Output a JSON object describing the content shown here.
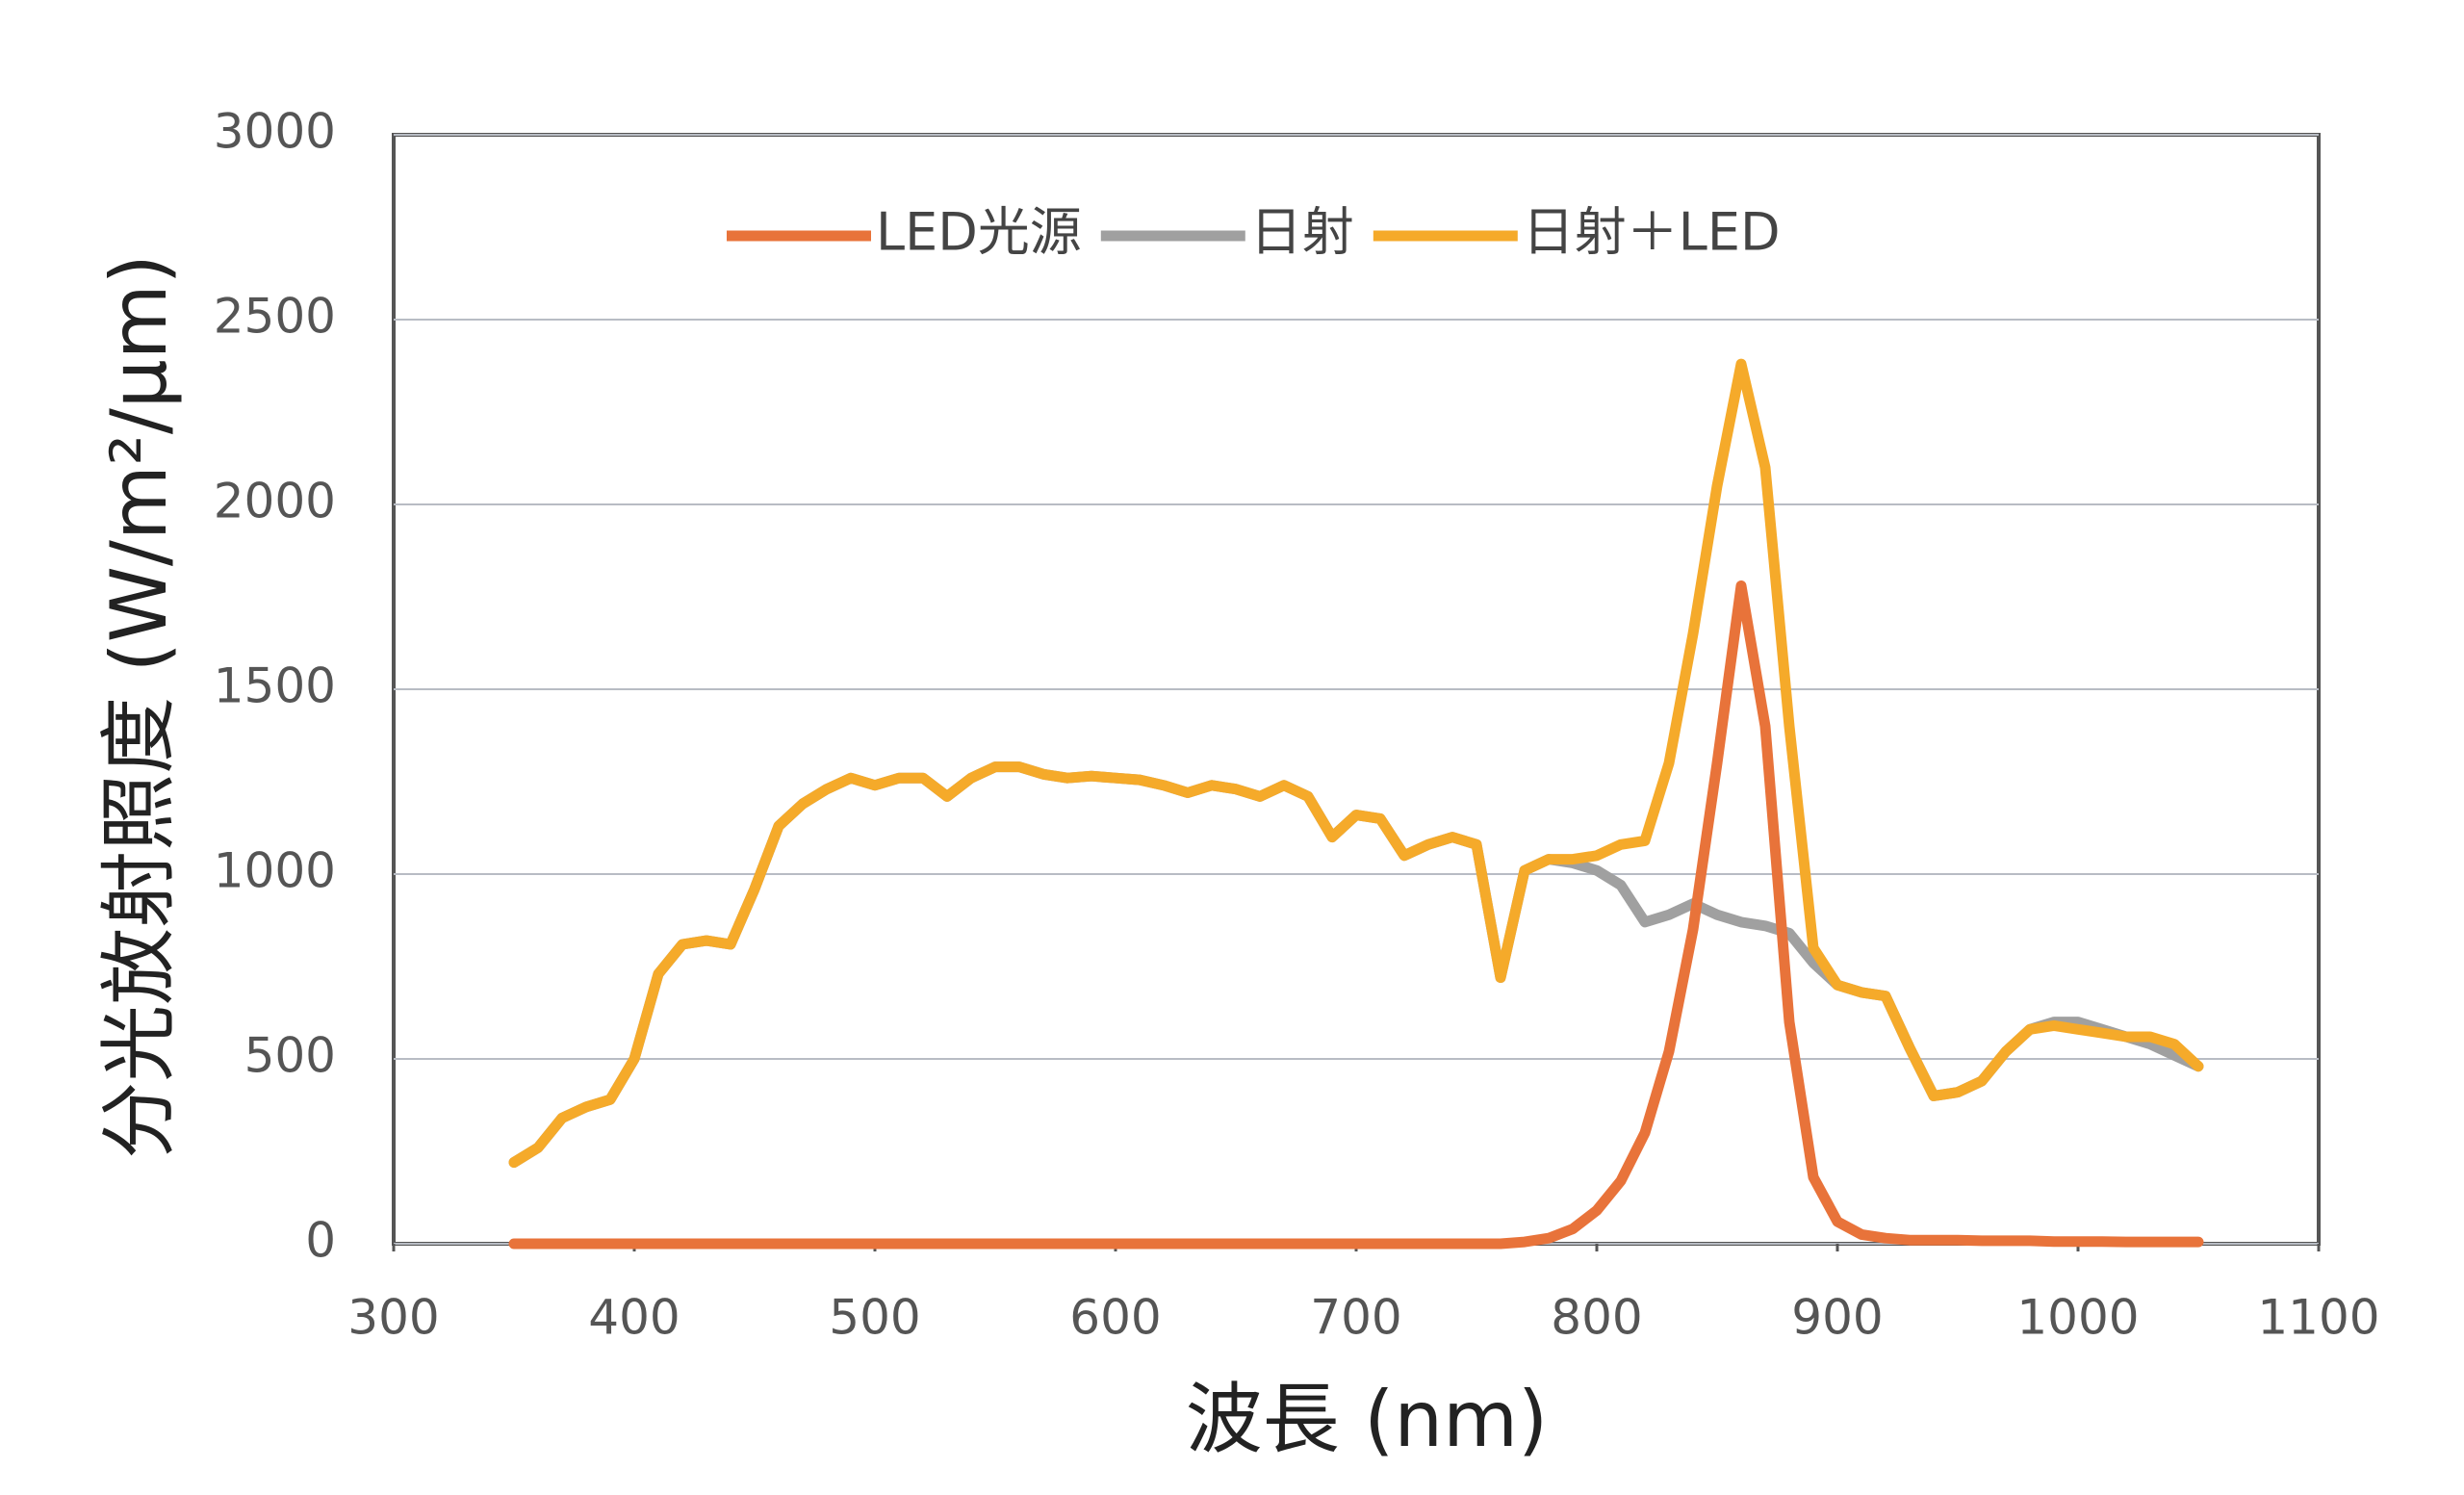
{
  "chart_data": {
    "type": "line",
    "xlabel": "波長 (nm)",
    "ylabel": "分光放射照度 (W/m²/μm)",
    "x": [
      350,
      360,
      370,
      380,
      390,
      400,
      410,
      420,
      430,
      440,
      450,
      460,
      470,
      480,
      490,
      500,
      510,
      520,
      530,
      540,
      550,
      560,
      570,
      580,
      590,
      600,
      610,
      620,
      630,
      640,
      650,
      660,
      670,
      680,
      690,
      700,
      710,
      720,
      730,
      740,
      750,
      760,
      770,
      780,
      790,
      800,
      810,
      820,
      830,
      840,
      850,
      860,
      870,
      880,
      890,
      900,
      910,
      920,
      930,
      940,
      950,
      960,
      970,
      980,
      990,
      1000,
      1010,
      1020,
      1030,
      1040,
      1050
    ],
    "series": [
      {
        "name": "LED光源",
        "color": "#e8733a",
        "values": [
          0,
          0,
          0,
          0,
          0,
          0,
          0,
          0,
          0,
          0,
          0,
          0,
          0,
          0,
          0,
          0,
          0,
          0,
          0,
          0,
          0,
          0,
          0,
          0,
          0,
          0,
          0,
          0,
          0,
          0,
          0,
          0,
          0,
          0,
          0,
          0,
          0,
          0,
          0,
          0,
          0,
          0,
          5,
          15,
          40,
          90,
          170,
          300,
          520,
          850,
          1300,
          1780,
          1400,
          600,
          180,
          60,
          25,
          15,
          10,
          10,
          10,
          8,
          8,
          8,
          6,
          6,
          6,
          5,
          5,
          5,
          5
        ]
      },
      {
        "name": "日射",
        "color": "#a0a0a0",
        "values": [
          220,
          260,
          340,
          370,
          390,
          500,
          730,
          810,
          820,
          810,
          960,
          1130,
          1190,
          1230,
          1260,
          1240,
          1260,
          1260,
          1210,
          1260,
          1290,
          1290,
          1270,
          1260,
          1265,
          1260,
          1255,
          1240,
          1220,
          1240,
          1230,
          1210,
          1240,
          1210,
          1100,
          1160,
          1150,
          1050,
          1080,
          1100,
          1080,
          720,
          1010,
          1040,
          1030,
          1010,
          970,
          870,
          890,
          920,
          890,
          870,
          860,
          840,
          760,
          700,
          680,
          670,
          530,
          400,
          410,
          440,
          520,
          580,
          600,
          600,
          580,
          560,
          540,
          510,
          480
        ]
      },
      {
        "name": "日射＋LED",
        "color": "#f5aa2a",
        "values": [
          220,
          260,
          340,
          370,
          390,
          500,
          730,
          810,
          820,
          810,
          960,
          1130,
          1190,
          1230,
          1260,
          1240,
          1260,
          1260,
          1210,
          1260,
          1290,
          1290,
          1270,
          1260,
          1265,
          1260,
          1255,
          1240,
          1220,
          1240,
          1230,
          1210,
          1240,
          1210,
          1100,
          1160,
          1150,
          1050,
          1080,
          1100,
          1080,
          720,
          1010,
          1040,
          1040,
          1050,
          1080,
          1090,
          1300,
          1650,
          2050,
          2380,
          2100,
          1400,
          800,
          700,
          680,
          670,
          530,
          400,
          410,
          440,
          520,
          580,
          590,
          580,
          570,
          560,
          560,
          540,
          480
        ]
      }
    ],
    "xlim": [
      300,
      1100
    ],
    "xticks": [
      300,
      400,
      500,
      600,
      700,
      800,
      900,
      1000,
      1100
    ],
    "ylim": [
      0,
      3000
    ],
    "yticks": [
      0,
      500,
      1000,
      1500,
      2000,
      2500,
      3000
    ],
    "grid": true,
    "legend": "top"
  }
}
